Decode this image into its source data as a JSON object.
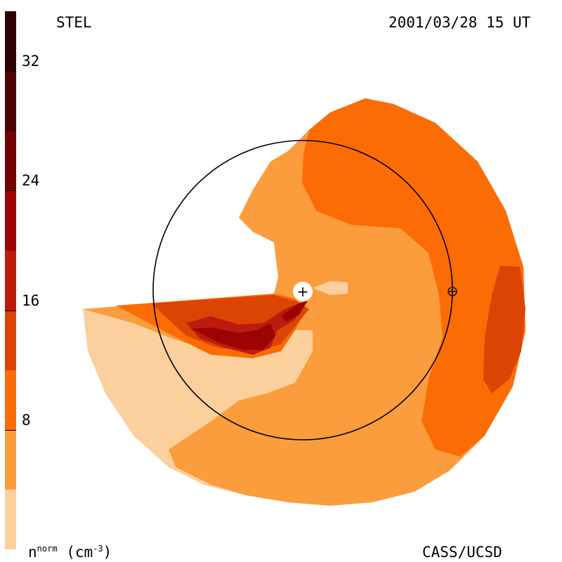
{
  "header": {
    "instrument": "STEL",
    "timestamp": "2001/03/28 15 UT"
  },
  "footer": {
    "credit": "CASS/UCSD",
    "unit_base": "n",
    "unit_sup": "norm",
    "unit_rest": " (cm",
    "unit_exp": "-3",
    "unit_close": ")"
  },
  "chart_data": {
    "type": "heatmap",
    "title": "",
    "quantity": "normalized density",
    "colorbar": {
      "range": [
        0,
        36
      ],
      "ticks": [
        "8",
        "16",
        "24",
        "32"
      ],
      "tick_values": [
        8,
        16,
        24,
        32
      ],
      "levels": [
        {
          "from": 0,
          "to": 4,
          "color": "#fcd09c"
        },
        {
          "from": 4,
          "to": 8,
          "color": "#fb9d3c"
        },
        {
          "from": 8,
          "to": 12,
          "color": "#fc6c04"
        },
        {
          "from": 12,
          "to": 16,
          "color": "#dc4404"
        },
        {
          "from": 16,
          "to": 20,
          "color": "#bc1c0c"
        },
        {
          "from": 20,
          "to": 24,
          "color": "#9c0404"
        },
        {
          "from": 24,
          "to": 28,
          "color": "#740404"
        },
        {
          "from": 28,
          "to": 32,
          "color": "#4c0404"
        },
        {
          "from": 32,
          "to": 36,
          "color": "#2c0404"
        }
      ]
    },
    "markers": [
      {
        "name": "Sun",
        "symbol": "+"
      },
      {
        "name": "Earth",
        "symbol": "⊕"
      }
    ],
    "reference_circle": "1 AU orbit"
  }
}
